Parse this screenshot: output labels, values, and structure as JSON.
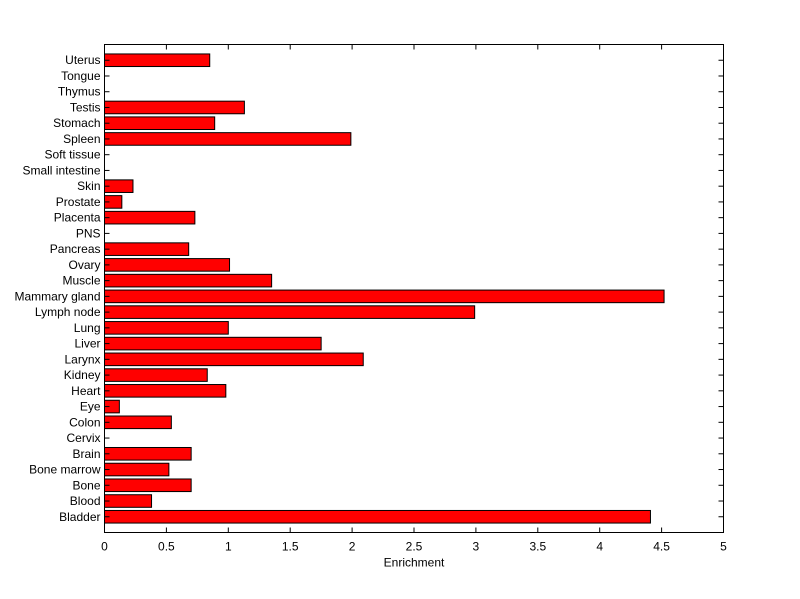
{
  "chart_data": {
    "type": "bar",
    "orientation": "horizontal",
    "title": "",
    "xlabel": "Enrichment",
    "ylabel": "",
    "xlim": [
      0,
      5
    ],
    "xticks": [
      "0",
      "0.5",
      "1",
      "1.5",
      "2",
      "2.5",
      "3",
      "3.5",
      "4",
      "4.5",
      "5"
    ],
    "grid": false,
    "bar_color": "#ff0000",
    "bar_edge_color": "#000000",
    "categories": [
      "Bladder",
      "Blood",
      "Bone",
      "Bone marrow",
      "Brain",
      "Cervix",
      "Colon",
      "Eye",
      "Heart",
      "Kidney",
      "Larynx",
      "Liver",
      "Lung",
      "Lymph node",
      "Mammary gland",
      "Muscle",
      "Ovary",
      "Pancreas",
      "PNS",
      "Placenta",
      "Prostate",
      "Skin",
      "Small intestine",
      "Soft tissue",
      "Spleen",
      "Stomach",
      "Testis",
      "Thymus",
      "Tongue",
      "Uterus"
    ],
    "values": [
      4.41,
      0.38,
      0.7,
      0.52,
      0.7,
      0,
      0.54,
      0.12,
      0.98,
      0.83,
      2.09,
      1.75,
      1.0,
      2.99,
      4.52,
      1.35,
      1.01,
      0.68,
      0,
      0.73,
      0.14,
      0.23,
      0,
      0,
      1.99,
      0.89,
      1.13,
      0,
      0,
      0.85
    ]
  }
}
